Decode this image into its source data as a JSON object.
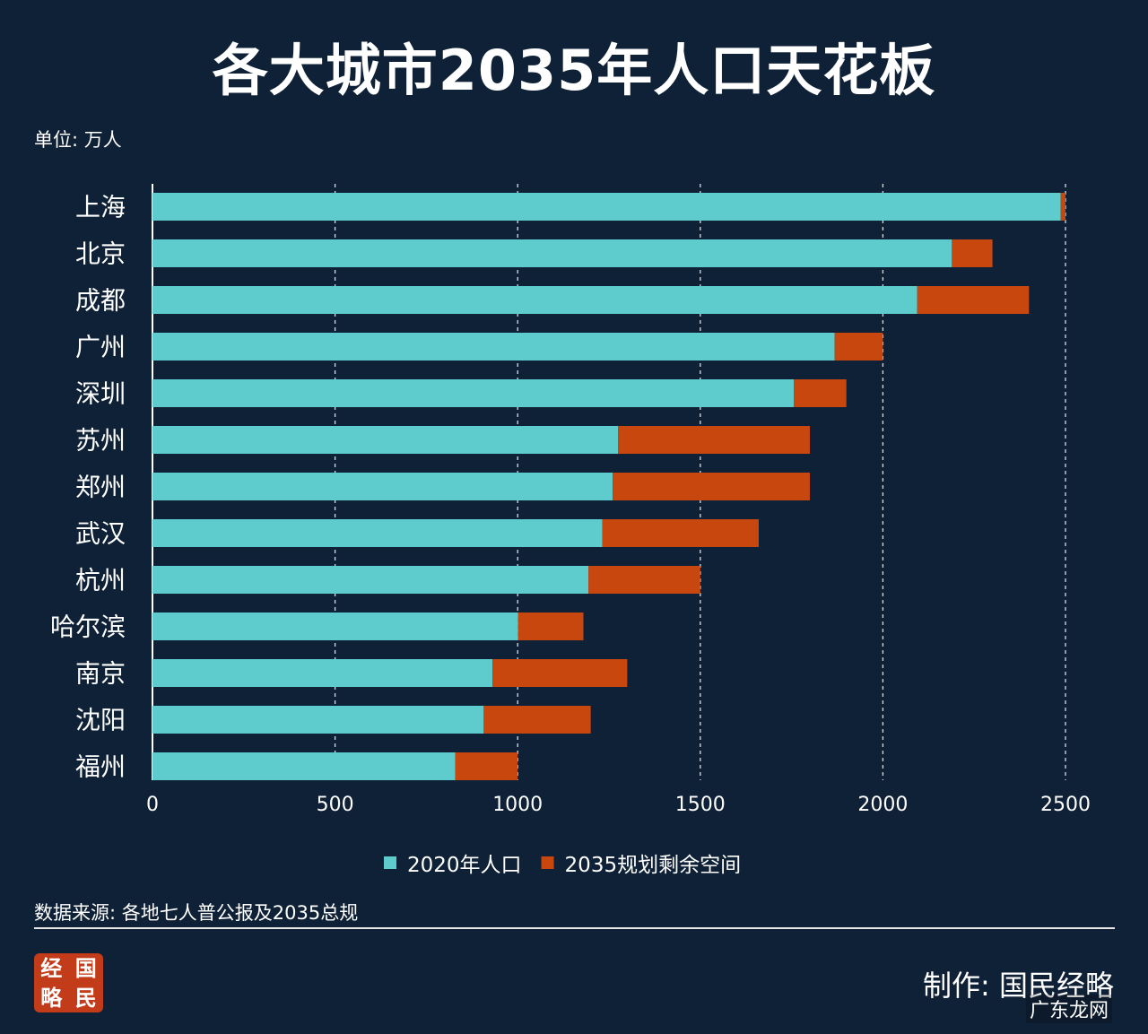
{
  "chart_data": {
    "type": "bar",
    "orientation": "horizontal",
    "stacked": true,
    "title": "各大城市2035年人口天花板",
    "unit_label": "单位: 万人",
    "categories": [
      "上海",
      "北京",
      "成都",
      "广州",
      "深圳",
      "苏州",
      "郑州",
      "武汉",
      "杭州",
      "哈尔滨",
      "南京",
      "沈阳",
      "福州"
    ],
    "series": [
      {
        "name": "2020年人口",
        "color": "#5ecccc",
        "values": [
          2487,
          2189,
          2094,
          1868,
          1756,
          1275,
          1260,
          1232,
          1194,
          1001,
          931,
          907,
          829
        ]
      },
      {
        "name": "2035规划剩余空间",
        "color": "#c8470f",
        "values": [
          13,
          111,
          306,
          132,
          144,
          525,
          540,
          428,
          306,
          179,
          369,
          293,
          171
        ]
      }
    ],
    "xlim": [
      0,
      2500
    ],
    "xticks": [
      "0",
      "500",
      "1000",
      "1500",
      "2000",
      "2500"
    ],
    "grid": "vertical dashed",
    "legend": "bottom"
  },
  "footer": {
    "source": "数据来源: 各地七人普公报及2035总规",
    "maker": "制作: 国民经略",
    "logo": [
      "经",
      "国",
      "略",
      "民"
    ],
    "watermark": "广东龙网"
  }
}
